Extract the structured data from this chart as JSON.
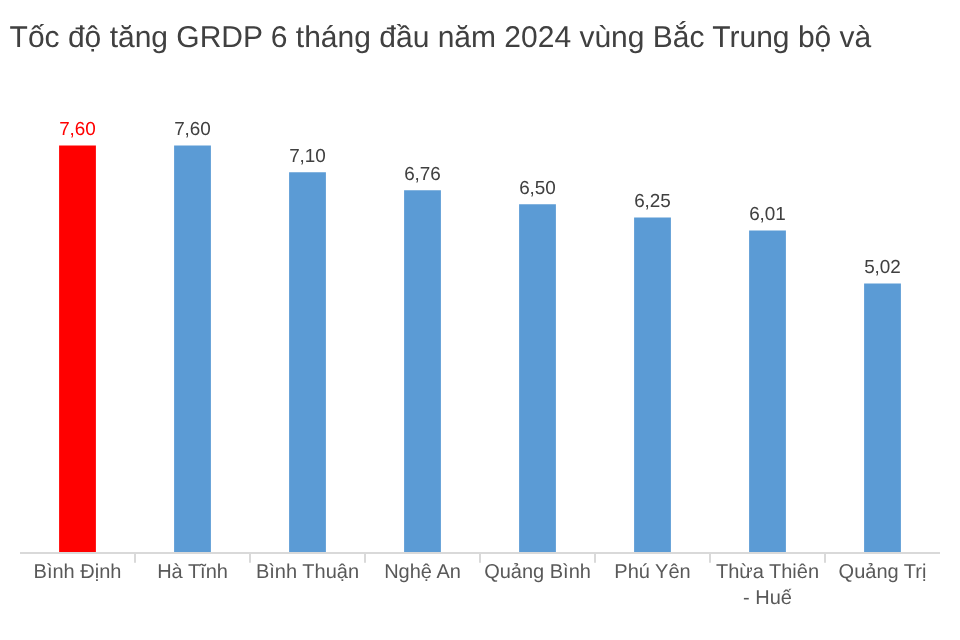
{
  "chart_data": {
    "type": "bar",
    "title": "Tốc độ tăng GRDP 6 tháng đầu năm 2024 vùng Bắc Trung bộ và",
    "categories": [
      "Bình Định",
      "Hà Tĩnh",
      "Bình Thuận",
      "Nghệ An",
      "Quảng Bình",
      "Phú Yên",
      "Thừa Thiên - Huế",
      "Quảng Trị"
    ],
    "values": [
      7.6,
      7.6,
      7.1,
      6.76,
      6.5,
      6.25,
      6.01,
      5.02
    ],
    "colors": [
      "#ff0000",
      "#5b9bd5",
      "#5b9bd5",
      "#5b9bd5",
      "#5b9bd5",
      "#5b9bd5",
      "#5b9bd5",
      "#5b9bd5"
    ],
    "value_labels": [
      "7,60",
      "7,60",
      "7,10",
      "6,76",
      "6,50",
      "6,25",
      "6,01",
      "5,02"
    ],
    "grid": false
  }
}
